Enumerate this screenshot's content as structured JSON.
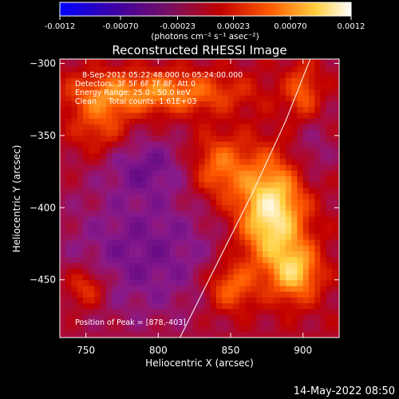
{
  "colorbar": {
    "ticks": [
      "-0.0012",
      "-0.00070",
      "-0.00023",
      "0.00023",
      "0.00070",
      "0.0012"
    ],
    "tick_values": [
      -0.0012,
      -0.0007,
      -0.00023,
      0.00023,
      0.0007,
      0.0012
    ],
    "range": [
      -0.0012,
      0.0012
    ],
    "units": "(photons cm⁻² s⁻¹ asec⁻²)"
  },
  "info": {
    "time": "8-Sep-2012 05:22:48.000 to 05:24:00.000",
    "detectors": "Detectors: 3F 5F 6F 7F 8F, Att 0",
    "energy": "Energy Range: 25.0 - 50.0 keV",
    "method": "Clean     Total counts: 1.61E+03",
    "peak": "Position of Peak = [878,-403]"
  },
  "footer_date": "14-May-2022 08:50",
  "chart_data": {
    "type": "heatmap",
    "title": "Reconstructed RHESSI Image",
    "xlabel": "Heliocentric X (arcsec)",
    "ylabel": "Heliocentric Y (arcsec)",
    "xlim": [
      732,
      925
    ],
    "ylim": [
      -490,
      -297
    ],
    "xticks": [
      750,
      800,
      850,
      900
    ],
    "yticks": [
      -300,
      -350,
      -400,
      -450
    ],
    "xtick_labels": [
      "750",
      "800",
      "850",
      "900"
    ],
    "ytick_labels": [
      "−300",
      "−350",
      "−400",
      "−450"
    ],
    "peak": [
      878,
      -403
    ],
    "colormap": [
      "#0000ff",
      "#4b0082",
      "#8a1a8a",
      "#c00000",
      "#ff5a00",
      "#ffd040",
      "#ffffff"
    ],
    "limb_curve": [
      [
        815,
        -490
      ],
      [
        845,
        -430
      ],
      [
        865,
        -390
      ],
      [
        888,
        -340
      ],
      [
        905,
        -297
      ]
    ],
    "source_regions": [
      {
        "x": 878,
        "y": -403,
        "sx": 16,
        "sy": 26,
        "amp": 0.0012
      },
      {
        "x": 895,
        "y": -445,
        "sx": 12,
        "sy": 14,
        "amp": 0.0008
      },
      {
        "x": 800,
        "y": -320,
        "sx": 40,
        "sy": 10,
        "amp": 0.0007
      },
      {
        "x": 842,
        "y": -372,
        "sx": 14,
        "sy": 16,
        "amp": 0.0006
      },
      {
        "x": 760,
        "y": -340,
        "sx": 14,
        "sy": 18,
        "amp": 0.00045
      },
      {
        "x": 850,
        "y": -455,
        "sx": 12,
        "sy": 12,
        "amp": 0.0006
      },
      {
        "x": 750,
        "y": -455,
        "sx": 10,
        "sy": 10,
        "amp": 0.0005
      },
      {
        "x": 900,
        "y": -320,
        "sx": 8,
        "sy": 14,
        "amp": 0.0005
      }
    ],
    "negative_regions": [
      {
        "x": 790,
        "y": -430,
        "sx": 40,
        "sy": 35,
        "amp": -0.0004
      },
      {
        "x": 790,
        "y": -370,
        "sx": 22,
        "sy": 14,
        "amp": -0.00035
      },
      {
        "x": 905,
        "y": -360,
        "sx": 12,
        "sy": 18,
        "amp": -0.00025
      }
    ]
  }
}
